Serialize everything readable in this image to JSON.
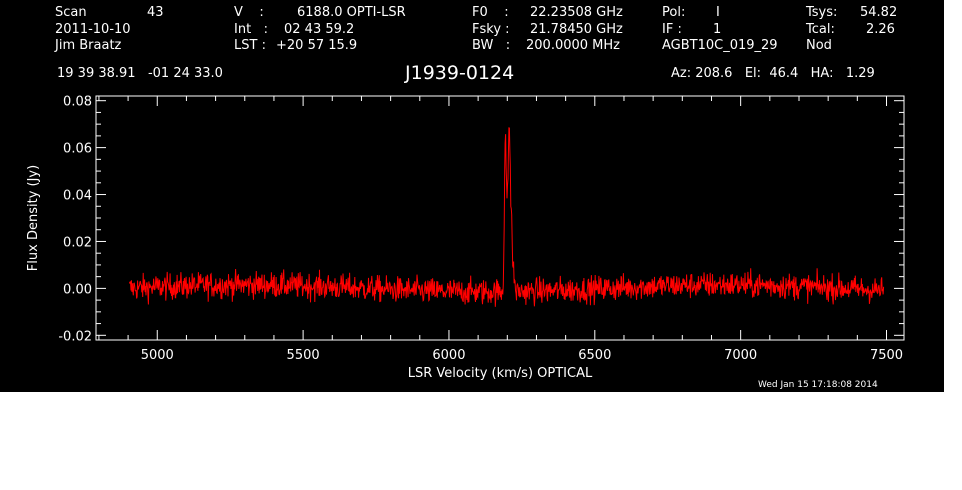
{
  "header": {
    "col1": [
      "Scan",
      "2011-10-10",
      "Jim Braatz"
    ],
    "scan_number": "43",
    "col2_labels": [
      "V    :",
      "Int   :",
      "LST :"
    ],
    "col2_values": [
      "6188.0 OPTI-LSR",
      "02 43 59.2",
      "+20 57 15.9"
    ],
    "col3_labels": [
      "F0    :",
      "Fsky :",
      "BW   :"
    ],
    "col3_values": [
      "22.23508 GHz",
      "21.78450 GHz",
      "200.0000 MHz"
    ],
    "col4_labels": [
      "Pol:",
      "IF :",
      "AGBT10C_019_29"
    ],
    "col4_values": [
      "I",
      "1",
      ""
    ],
    "col5_labels": [
      "Tsys:",
      "Tcal:",
      "Nod"
    ],
    "col5_values": [
      "54.82",
      "2.26",
      ""
    ],
    "coords": "19 39 38.91   -01 24 33.0",
    "source": "J1939-0124",
    "az_el_ha": "Az: 208.6   El:  46.4   HA:   1.29",
    "timestamp": "Wed Jan 15 17:18:08 2014"
  },
  "chart_data": {
    "type": "line",
    "xlabel": "LSR Velocity (km/s) OPTICAL",
    "ylabel": "Flux Density (Jy)",
    "xlim": [
      4790,
      7560
    ],
    "ylim": [
      -0.022,
      0.082
    ],
    "xticks": [
      5000,
      5500,
      6000,
      6500,
      7000,
      7500
    ],
    "xtick_labels": [
      "5000",
      "5500",
      "6000",
      "6500",
      "7000",
      "7500"
    ],
    "yticks": [
      -0.02,
      0.0,
      0.02,
      0.04,
      0.06,
      0.08
    ],
    "ytick_labels": [
      "-0.02",
      "0.00",
      "0.02",
      "0.04",
      "0.06",
      "0.08"
    ],
    "x_range": [
      4905,
      7490
    ],
    "baseline": 0.0,
    "noise_rms": 0.0028,
    "features": [
      {
        "center": 6193,
        "peak": 0.066
      },
      {
        "center": 6200,
        "peak": 0.035
      },
      {
        "center": 6207,
        "peak": 0.068
      },
      {
        "center": 6214,
        "peak": 0.03
      },
      {
        "center": 6222,
        "peak": 0.008
      }
    ],
    "line_color": "#ff0000",
    "axis_color": "#ffffff",
    "background": "#000000"
  }
}
